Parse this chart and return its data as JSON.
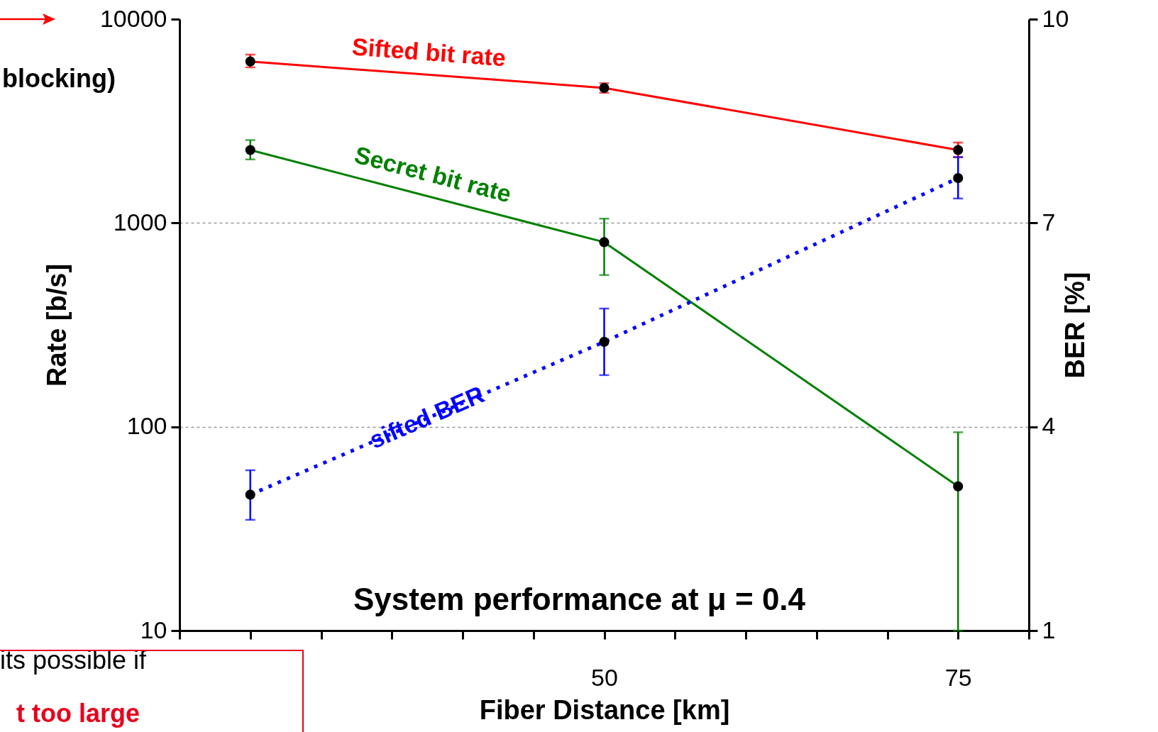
{
  "chart_data": {
    "type": "line",
    "title": "System performance at μ = 0.4",
    "xlabel": "Fiber Distance [km]",
    "ylabel": "Rate [b/s]",
    "y2label": "BER [%]",
    "x": [
      25,
      50,
      75
    ],
    "series": [
      {
        "name": "Sifted bit rate",
        "color": "#ff0000",
        "values": [
          6200,
          4600,
          2280
        ],
        "errors": [
          [
            5800,
            6700
          ],
          [
            4350,
            4850
          ],
          [
            2100,
            2480
          ]
        ]
      },
      {
        "name": "Secret bit rate",
        "color": "#008000",
        "values": [
          2280,
          805,
          51
        ],
        "errors": [
          [
            2050,
            2550
          ],
          [
            555,
            1050
          ],
          [
            10,
            94
          ]
        ]
      },
      {
        "name": "sifted BER",
        "color": "#0000ff",
        "axis": "y2",
        "line_style": "dotted",
        "values": [
          3.0,
          5.25,
          7.66
        ],
        "errors": [
          [
            2.63,
            3.36
          ],
          [
            4.76,
            5.74
          ],
          [
            7.36,
            7.97
          ]
        ]
      }
    ],
    "xlim": [
      20,
      80
    ],
    "xticks": [
      {
        "value": 20,
        "label": null
      },
      {
        "value": 25,
        "label": null
      },
      {
        "value": 30,
        "label": null
      },
      {
        "value": 35,
        "label": null
      },
      {
        "value": 40,
        "label": null
      },
      {
        "value": 45,
        "label": null
      },
      {
        "value": 50,
        "label": "50"
      },
      {
        "value": 55,
        "label": null
      },
      {
        "value": 60,
        "label": null
      },
      {
        "value": 65,
        "label": null
      },
      {
        "value": 70,
        "label": null
      },
      {
        "value": 75,
        "label": "75"
      },
      {
        "value": 80,
        "label": null
      }
    ],
    "ylim": [
      10,
      10000
    ],
    "yticks": [
      10,
      100,
      1000,
      10000
    ],
    "log": "y",
    "y2lim": [
      1,
      10
    ],
    "y2ticks": [
      1,
      4,
      7,
      10
    ],
    "grid": "y",
    "marker": "circle",
    "annotations": [
      "blocking)",
      "its possible if",
      "t too large"
    ]
  }
}
